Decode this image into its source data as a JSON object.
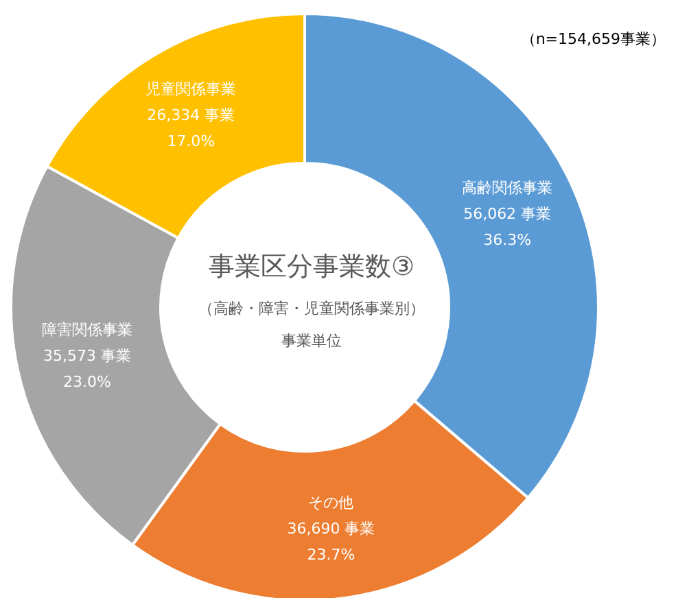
{
  "chart_data": {
    "type": "donut",
    "title": "事業区分事業数③",
    "subtitle": "（高齢・障害・児童関係事業別）",
    "categories": [
      "高齢関係事業",
      "その他",
      "障害関係事業",
      "児童関係事業"
    ],
    "values": [
      56062,
      36690,
      35573,
      26334
    ],
    "colors": [
      "#5b9bd5",
      "#ed7d31",
      "#a5a5a5",
      "#ffc000"
    ],
    "value_labels": [
      "56,062 事業\n36.3%",
      "36,690 事業\n23.7%",
      "35,573 事業\n23.0%",
      "26,334 事業\n17.0%"
    ],
    "annotations": [
      "（n=154,659事業）",
      "事業単位"
    ],
    "legend": false
  }
}
